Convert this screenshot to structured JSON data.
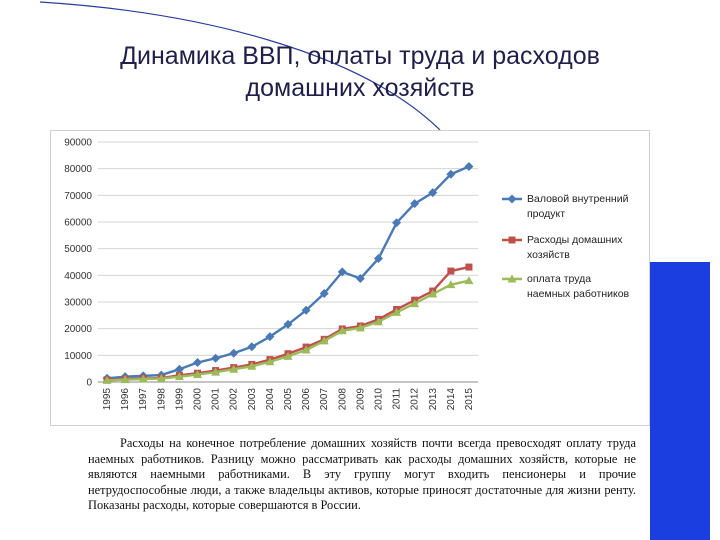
{
  "slide": {
    "title_line1": "Динамика ВВП, оплаты труда и расходов",
    "title_line2": "домашних хозяйств",
    "paragraph": "Расходы на конечное потребление домашних хозяйств почти всегда превосходят оплату труда наемных работников. Разницу можно рассматривать как расходы домашних хозяйств, которые не являются наемными работниками. В эту группу могут входить пенсионеры и прочие нетрудоспособные люди, а также владельцы активов, которые приносят достаточные для жизни ренту. Показаны расходы, которые совершаются в России."
  },
  "colors": {
    "title": "#1f1f4a",
    "accent_bar": "#1a3ee0",
    "arc": "#2a3f9a"
  },
  "chart_data": {
    "type": "line",
    "title": "",
    "xlabel": "",
    "ylabel": "",
    "ylim": [
      0,
      90000
    ],
    "yticks": [
      0,
      10000,
      20000,
      30000,
      40000,
      50000,
      60000,
      70000,
      80000,
      90000
    ],
    "grid": true,
    "legend_position": "right",
    "x": [
      "1995",
      "1996",
      "1997",
      "1998",
      "1999",
      "2000",
      "2001",
      "2002",
      "2003",
      "2004",
      "2005",
      "2006",
      "2007",
      "2008",
      "2009",
      "2010",
      "2011",
      "2012",
      "2013",
      "2014",
      "2015"
    ],
    "series": [
      {
        "name": "Валовой внутренний продукт",
        "legend_lines": [
          "Валовой внутренний",
          "продукт"
        ],
        "color": "#4a7ab5",
        "marker": "diamond",
        "values": [
          1400,
          2000,
          2300,
          2600,
          4800,
          7300,
          8900,
          10800,
          13200,
          17000,
          21600,
          26900,
          33200,
          41300,
          38800,
          46300,
          59700,
          66900,
          71000,
          77900,
          80800
        ]
      },
      {
        "name": "Расходы домашних хозяйств",
        "legend_lines": [
          "Расходы домашних",
          "хозяйств"
        ],
        "color": "#c0504d",
        "marker": "square",
        "values": [
          800,
          1100,
          1300,
          1500,
          2500,
          3300,
          4300,
          5400,
          6600,
          8400,
          10600,
          13100,
          16000,
          19900,
          21000,
          23500,
          27200,
          30700,
          34100,
          41600,
          43100
        ]
      },
      {
        "name": "оплата труда наемных работников",
        "legend_lines": [
          "оплата труда",
          "наемных работников"
        ],
        "color": "#9bbb59",
        "marker": "triangle",
        "values": [
          600,
          900,
          1100,
          1300,
          2000,
          2800,
          3700,
          4800,
          5900,
          7600,
          9600,
          12000,
          15400,
          19200,
          20300,
          22600,
          26100,
          29400,
          33000,
          36500,
          38000
        ]
      }
    ]
  }
}
